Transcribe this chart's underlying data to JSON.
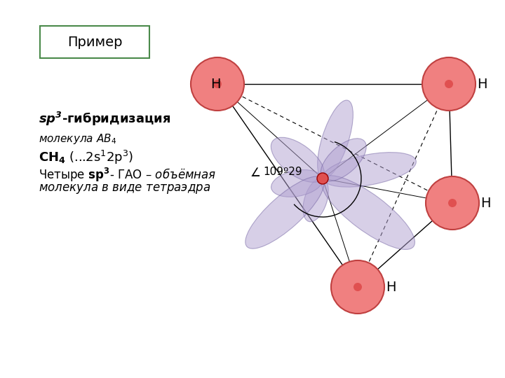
{
  "title": "Пример",
  "label_sp3": "sp³-гибридизация",
  "label_mol": "молекула AB₄",
  "label_ch4": "CH₄ (...2s¹2p³)",
  "label_desc": "Четыре sp³- ГАО – объёмная",
  "label_desc2": "молекула в виде тетраэдра",
  "label_angle": "109º29",
  "center_color": "#e05050",
  "h_fill_color": "#f08080",
  "h_edge_color": "#c04040",
  "orbital_fill": "#b0a0d0",
  "orbital_edge": "#7060a0",
  "box_edge_color": "#4a8a4a",
  "background": "#ffffff"
}
